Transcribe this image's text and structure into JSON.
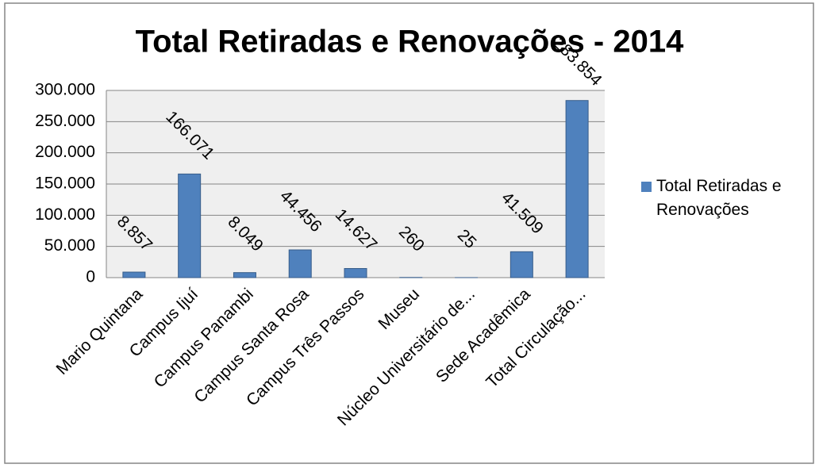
{
  "chart_data": {
    "type": "bar",
    "title": "Total Retiradas e Renovações - 2014",
    "categories": [
      "Mario Quintana",
      "Campus Ijuí",
      "Campus Panambi",
      "Campus Santa Rosa",
      "Campus Três Passos",
      "Museu",
      "Núcleo Universitário de...",
      "Sede Acadêmica",
      "Total Circulação..."
    ],
    "series": [
      {
        "name": "Total Retiradas e Renovações",
        "color": "#4f81bd",
        "values": [
          8857,
          166071,
          8049,
          44456,
          14627,
          260,
          25,
          41509,
          283854
        ],
        "value_labels": [
          "8.857",
          "166.071",
          "8.049",
          "44.456",
          "14.627",
          "260",
          "25",
          "41.509",
          "283.854"
        ]
      }
    ],
    "ylim": [
      0,
      300000
    ],
    "yticks": [
      0,
      {
        "value": 50000,
        "label": "50.000"
      },
      {
        "value": 100000,
        "label": "100.000"
      },
      {
        "value": 150000,
        "label": "150.000"
      },
      {
        "value": 200000,
        "label": "200.000"
      },
      {
        "value": 250000,
        "label": "250.000"
      },
      {
        "value": 300000,
        "label": "300.000"
      }
    ],
    "grid": true,
    "legend": "right"
  }
}
